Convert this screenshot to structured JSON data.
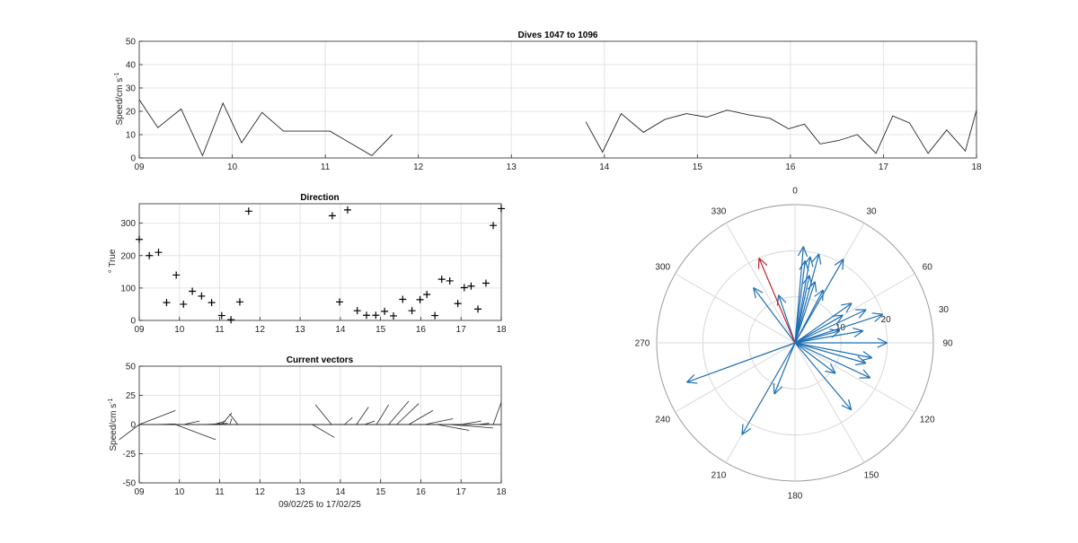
{
  "chart_data": [
    {
      "id": "speed",
      "type": "line",
      "title": "Dives 1047 to 1096",
      "ylabel": "Speed/cm s",
      "ylabel_sup": "-1",
      "xlim": [
        9,
        18
      ],
      "ylim": [
        0,
        50
      ],
      "xticks": [
        "09",
        "10",
        "11",
        "12",
        "13",
        "14",
        "15",
        "16",
        "17",
        "18"
      ],
      "yticks": [
        "0",
        "10",
        "20",
        "30",
        "40",
        "50"
      ],
      "grid": true,
      "segments": [
        {
          "x": [
            9.0,
            9.2,
            9.45,
            9.68,
            9.9,
            10.1,
            10.32,
            10.55,
            10.8,
            11.05,
            11.5,
            11.72
          ],
          "y": [
            25,
            13,
            21,
            1,
            23.5,
            6.5,
            19.5,
            11.5,
            11.5,
            11.5,
            1,
            10
          ]
        },
        {
          "x": [
            13.8,
            13.98,
            14.18,
            14.42,
            14.65,
            14.88,
            15.1,
            15.32,
            15.55,
            15.78,
            15.98,
            16.15,
            16.32,
            16.52,
            16.72,
            16.92,
            17.1,
            17.28,
            17.48,
            17.68,
            17.88,
            18.0
          ],
          "y": [
            15.5,
            2.5,
            19,
            11,
            16.5,
            19,
            17.5,
            20.5,
            18.5,
            17,
            12.5,
            14.5,
            6,
            7.5,
            10,
            2,
            18,
            15,
            2,
            12,
            3,
            20.5
          ]
        }
      ]
    },
    {
      "id": "direction",
      "type": "scatter",
      "title": "Direction",
      "ylabel": "° True",
      "xlim": [
        9,
        18
      ],
      "ylim": [
        0,
        360
      ],
      "xticks": [
        "09",
        "10",
        "11",
        "12",
        "13",
        "14",
        "15",
        "16",
        "17",
        "18"
      ],
      "yticks": [
        "0",
        "100",
        "200",
        "300"
      ],
      "x": [
        9.0,
        9.25,
        9.48,
        9.68,
        9.92,
        10.1,
        10.32,
        10.55,
        10.8,
        11.05,
        11.28,
        11.5,
        11.72,
        13.8,
        13.98,
        14.18,
        14.42,
        14.65,
        14.88,
        15.1,
        15.32,
        15.55,
        15.78,
        15.98,
        16.15,
        16.35,
        16.52,
        16.72,
        16.92,
        17.08,
        17.25,
        17.42,
        17.62,
        17.8,
        18.0
      ],
      "y": [
        250,
        200,
        210,
        55,
        140,
        50,
        90,
        75,
        55,
        15,
        2,
        57,
        337,
        323,
        57,
        341,
        30,
        16,
        16,
        28,
        14,
        65,
        30,
        64,
        80,
        15,
        127,
        122,
        52,
        101,
        106,
        35,
        115,
        293,
        345
      ]
    },
    {
      "id": "vectors",
      "type": "line",
      "title": "Current vectors",
      "ylabel": "Speed/cm s",
      "ylabel_sup": "-1",
      "xlabel": "09/02/25 to 17/02/25",
      "xlim": [
        9,
        18
      ],
      "ylim": [
        -50,
        50
      ],
      "xticks": [
        "09",
        "10",
        "11",
        "12",
        "13",
        "14",
        "15",
        "16",
        "17",
        "18"
      ],
      "yticks": [
        "-50",
        "-25",
        "0",
        "25",
        "50"
      ],
      "sticks": [
        {
          "x": 9.0,
          "u": 0.9,
          "v": 12
        },
        {
          "x": 9.0,
          "u": -0.5,
          "v": -13
        },
        {
          "x": 9.4,
          "u": 0.5,
          "v": 0.5
        },
        {
          "x": 9.6,
          "u": 0.3,
          "v": 0.5
        },
        {
          "x": 9.9,
          "u": 1.0,
          "v": -13
        },
        {
          "x": 10.1,
          "u": 0.4,
          "v": 3
        },
        {
          "x": 10.6,
          "u": 0.6,
          "v": 1
        },
        {
          "x": 10.85,
          "u": 0.3,
          "v": 3
        },
        {
          "x": 11.05,
          "u": 0.25,
          "v": 10
        },
        {
          "x": 11.25,
          "u": 0.05,
          "v": 5
        },
        {
          "x": 11.45,
          "u": -0.2,
          "v": 9
        },
        {
          "x": 13.3,
          "u": 0.55,
          "v": -11
        },
        {
          "x": 13.78,
          "u": -0.4,
          "v": 17
        },
        {
          "x": 14.1,
          "u": 0.2,
          "v": 6
        },
        {
          "x": 14.4,
          "u": 0.3,
          "v": 15
        },
        {
          "x": 14.6,
          "u": 0.25,
          "v": 3
        },
        {
          "x": 14.9,
          "u": 0.3,
          "v": 17
        },
        {
          "x": 15.2,
          "u": 0.5,
          "v": 20
        },
        {
          "x": 15.4,
          "u": 0.55,
          "v": 18
        },
        {
          "x": 15.7,
          "u": 0.6,
          "v": 12
        },
        {
          "x": 16.1,
          "u": 0.7,
          "v": 5
        },
        {
          "x": 16.4,
          "u": 0.8,
          "v": -5
        },
        {
          "x": 16.7,
          "u": 1.1,
          "v": -3
        },
        {
          "x": 17.0,
          "u": 0.5,
          "v": 3
        },
        {
          "x": 17.4,
          "u": 0.3,
          "v": 1
        },
        {
          "x": 17.8,
          "u": 0.2,
          "v": 19
        }
      ]
    },
    {
      "id": "polar",
      "type": "line",
      "theta_ticks": [
        "0",
        "30",
        "60",
        "90",
        "120",
        "150",
        "180",
        "210",
        "240",
        "270",
        "300",
        "330"
      ],
      "r_ticks": [
        "10",
        "20",
        "30"
      ],
      "rlim": [
        0,
        30
      ],
      "series_color": "#1f6fb4",
      "highlight_color": "#c0262d",
      "vectors": [
        {
          "angle": 7,
          "speed": 18
        },
        {
          "angle": 15,
          "speed": 20
        },
        {
          "angle": 5,
          "speed": 21
        },
        {
          "angle": 10,
          "speed": 19
        },
        {
          "angle": 12,
          "speed": 15
        },
        {
          "angle": 18,
          "speed": 14
        },
        {
          "angle": 28,
          "speed": 13
        },
        {
          "angle": 30,
          "speed": 21
        },
        {
          "angle": 55,
          "speed": 15
        },
        {
          "angle": 60,
          "speed": 12
        },
        {
          "angle": 65,
          "speed": 17
        },
        {
          "angle": 72,
          "speed": 20
        },
        {
          "angle": 75,
          "speed": 10
        },
        {
          "angle": 80,
          "speed": 15
        },
        {
          "angle": 90,
          "speed": 20
        },
        {
          "angle": 101,
          "speed": 17
        },
        {
          "angle": 106,
          "speed": 16
        },
        {
          "angle": 115,
          "speed": 18
        },
        {
          "angle": 127,
          "speed": 11
        },
        {
          "angle": 140,
          "speed": 19
        },
        {
          "angle": 202,
          "speed": 12
        },
        {
          "angle": 210,
          "speed": 23
        },
        {
          "angle": 250,
          "speed": 25
        },
        {
          "angle": 323,
          "speed": 15
        },
        {
          "angle": 341,
          "speed": 11
        },
        {
          "angle": 337,
          "speed": 20
        }
      ]
    }
  ]
}
